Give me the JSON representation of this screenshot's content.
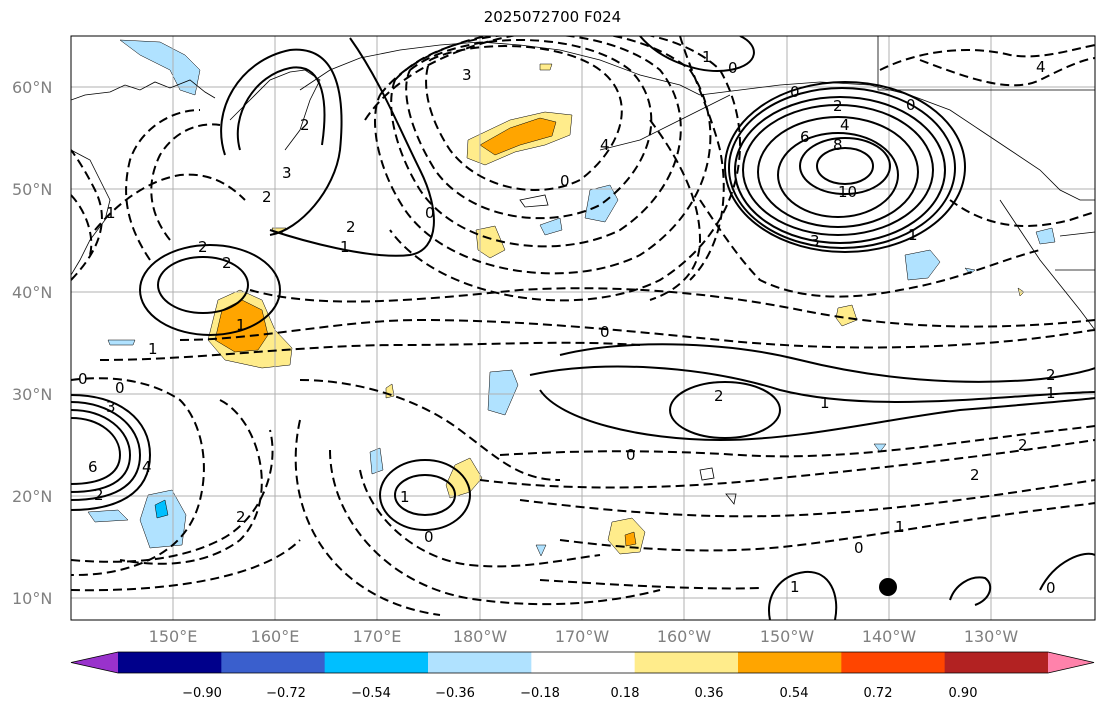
{
  "title": "2025072700 F024",
  "lat_labels": [
    "60°N",
    "50°N",
    "40°N",
    "30°N",
    "20°N",
    "10°N"
  ],
  "lon_labels": [
    "150°E",
    "160°E",
    "170°E",
    "180°W",
    "170°W",
    "160°W",
    "150°W",
    "140°W",
    "130°W"
  ],
  "colorbar": {
    "tick_labels": [
      "−0.90",
      "−0.72",
      "−0.54",
      "−0.36",
      "−0.18",
      "0.18",
      "0.36",
      "0.54",
      "0.72",
      "0.90"
    ],
    "colors": [
      "#9932cc",
      "#00008b",
      "#3a5fcd",
      "#00bfff",
      "#b0e2ff",
      "#ffffff",
      "#ffec8b",
      "#ffa500",
      "#ff4500",
      "#b22222",
      "#ff82ab"
    ]
  },
  "contour_labels": {
    "neg4_top": "4",
    "neg3_top": "3",
    "neg1_top": "1",
    "zero_top": "0",
    "c2_a": "2",
    "c3_a": "3",
    "c2_b": "2",
    "c1_b": "1",
    "c0_b": "0",
    "c2_c": "2",
    "c2_d": "2",
    "c1_d": "1",
    "c4_e": "4",
    "c0_e": "0",
    "c0_f": "0",
    "c2_f": "2",
    "c4_f": "4",
    "c6_f": "6",
    "c8_f": "8",
    "c10_f": "10",
    "c3_f": "3",
    "c1_f": "1",
    "c1_g": "1",
    "c0_g": "0",
    "c3_g": "3",
    "c6_g": "6",
    "c2_g": "2",
    "c4_g": "4",
    "c0_h": "0",
    "c2_h": "2",
    "c1_h": "1",
    "c1_i": "1",
    "c0_i": "0",
    "c2_j": "2",
    "c1_j": "1",
    "c0_j": "0",
    "c2_k": "2",
    "c2_k2": "2",
    "c1_k": "1",
    "c1_l": "1",
    "c0_l": "0",
    "c1_m": "1",
    "c0_m": "0",
    "c0_n": "0",
    "c2_n": "2"
  }
}
